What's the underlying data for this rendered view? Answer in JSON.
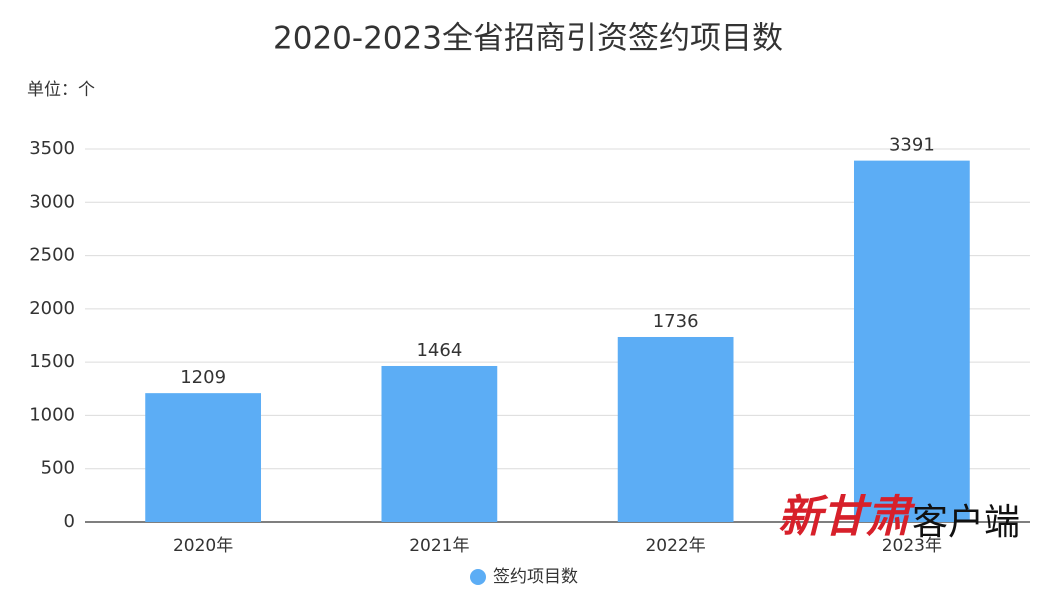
{
  "chart_data": {
    "type": "bar",
    "title": "2020-2023全省招商引资签约项目数",
    "unit_label": "单位：个",
    "categories": [
      "2020年",
      "2021年",
      "2022年",
      "2023年"
    ],
    "series": [
      {
        "name": "签约项目数",
        "color": "#5cadf5",
        "values": [
          1209,
          1464,
          1736,
          3391
        ]
      }
    ],
    "ylim": [
      0,
      3500
    ],
    "yticks": [
      0,
      500,
      1000,
      1500,
      2000,
      2500,
      3000,
      3500
    ],
    "grid": true,
    "legend": "bottom",
    "watermark": [
      "新甘肃",
      "客户端"
    ]
  }
}
